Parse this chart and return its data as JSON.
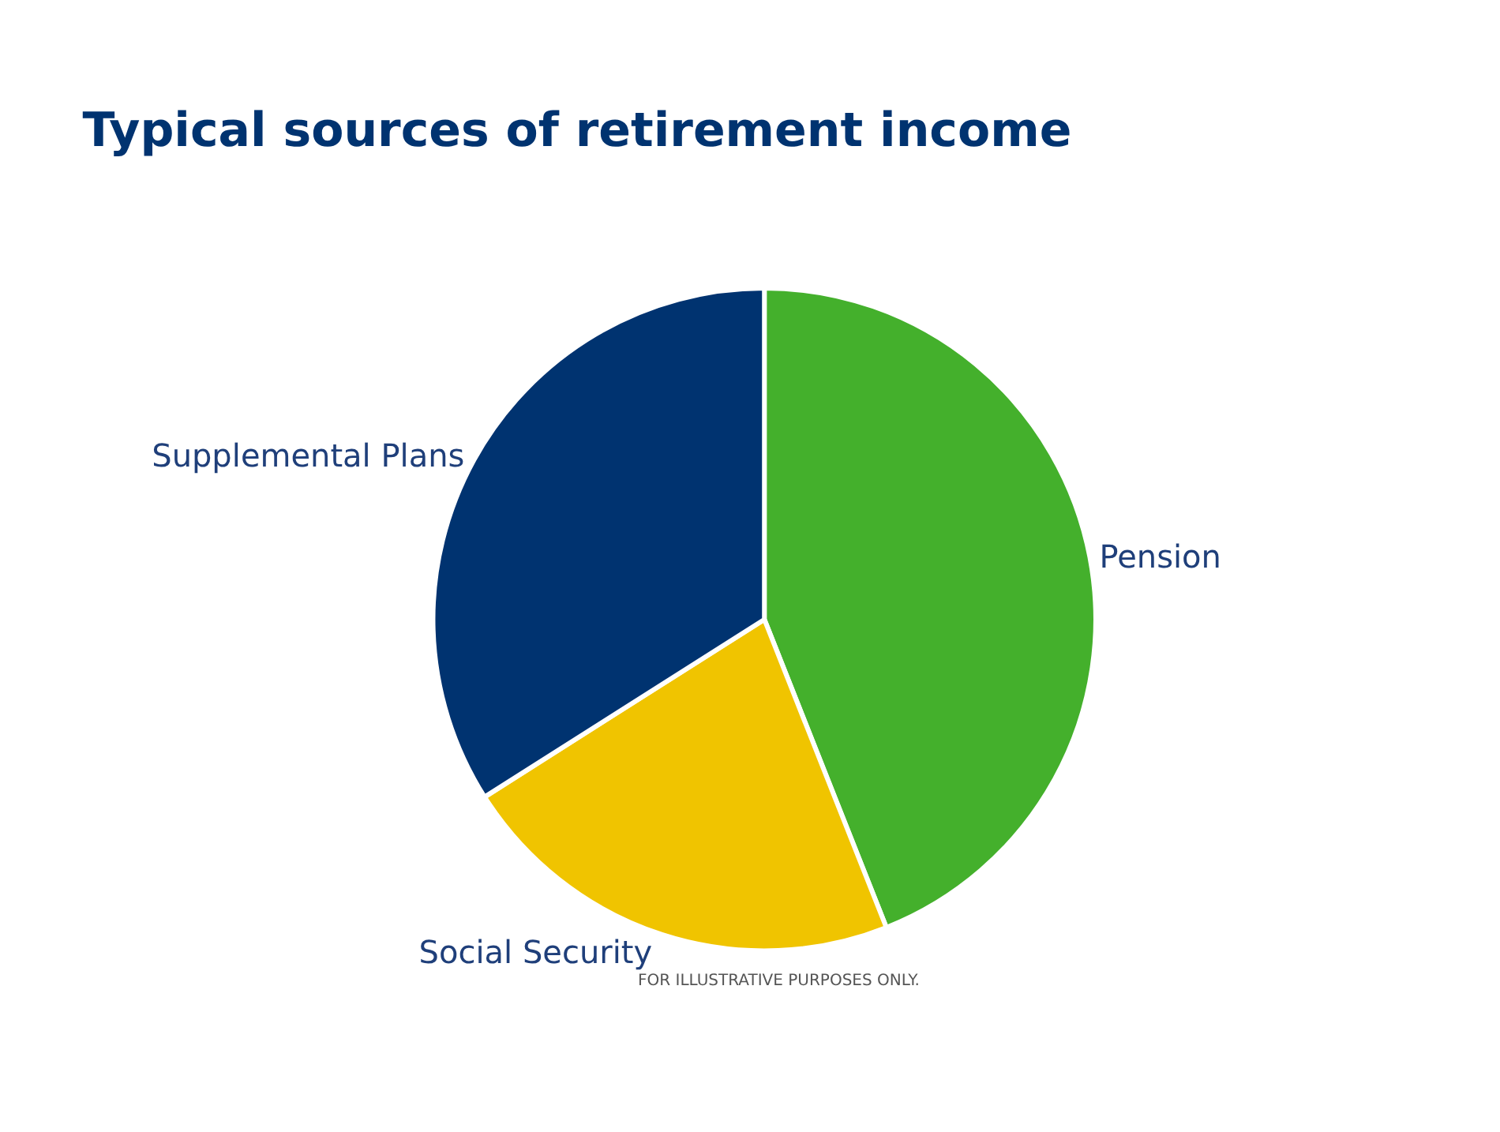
{
  "chart_data": {
    "type": "pie",
    "title": "Typical sources of retirement income",
    "categories": [
      "Pension",
      "Social Security",
      "Supplemental Plans"
    ],
    "values": [
      44,
      22,
      34
    ],
    "colors": [
      "#44b02c",
      "#f0c400",
      "#003370"
    ],
    "legend": false,
    "annotations": [
      "FOR ILLUSTRATIVE PURPOSES ONLY."
    ]
  }
}
